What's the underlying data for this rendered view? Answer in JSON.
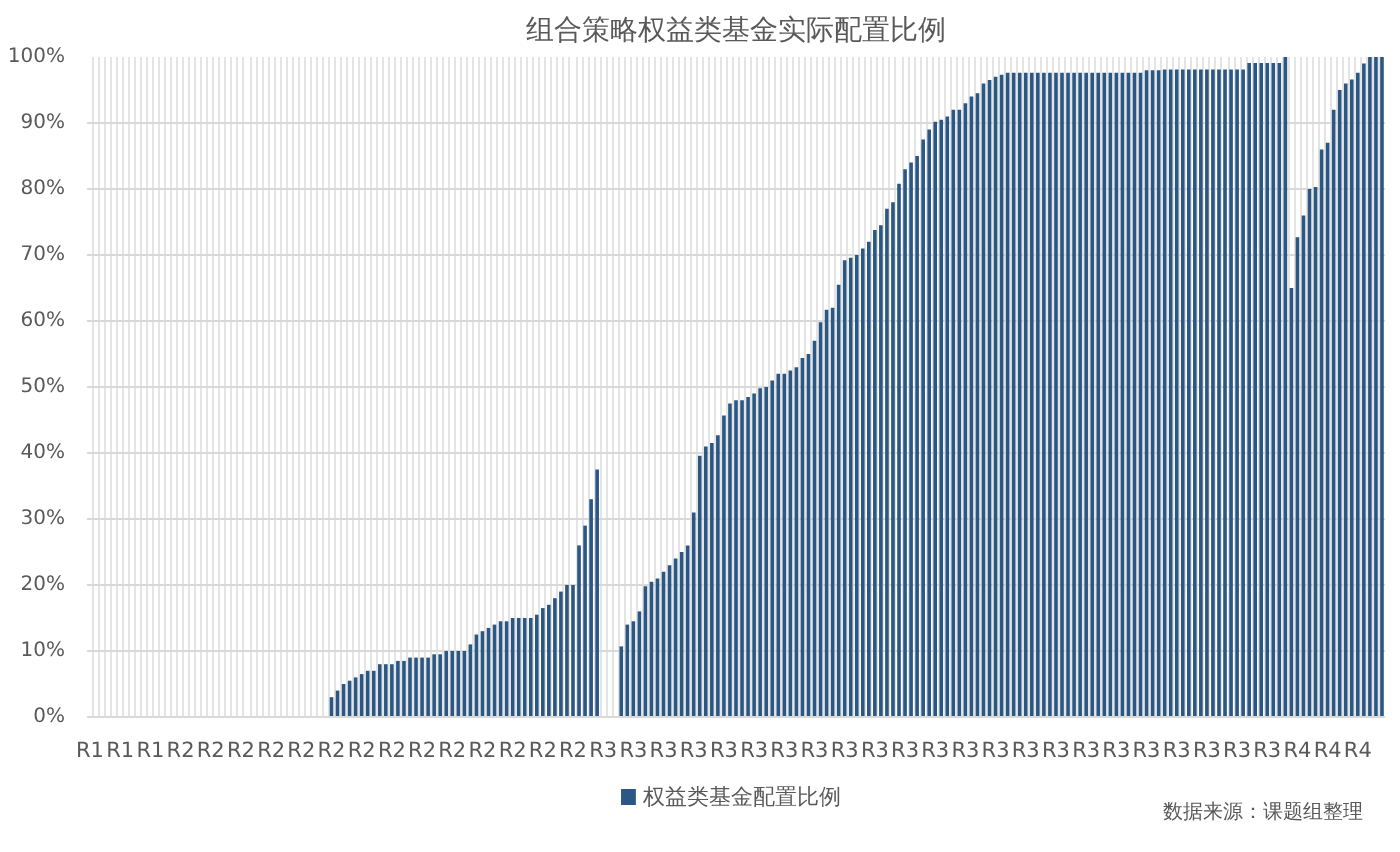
{
  "chart_data": {
    "type": "bar",
    "title": "组合策略权益类基金实际配置比例",
    "categories": [
      "R1",
      null,
      null,
      null,
      null,
      "R1",
      null,
      null,
      null,
      null,
      "R1",
      null,
      null,
      null,
      null,
      "R2",
      null,
      null,
      null,
      null,
      "R2",
      null,
      null,
      null,
      null,
      "R2",
      null,
      null,
      null,
      null,
      "R2",
      null,
      null,
      null,
      null,
      "R2",
      null,
      null,
      null,
      null,
      "R2",
      null,
      null,
      null,
      null,
      "R2",
      null,
      null,
      null,
      null,
      "R2",
      null,
      null,
      null,
      null,
      "R2",
      null,
      null,
      null,
      null,
      "R2",
      null,
      null,
      null,
      null,
      "R2",
      null,
      null,
      null,
      null,
      "R2",
      null,
      null,
      null,
      null,
      "R2",
      null,
      null,
      null,
      null,
      "R2",
      null,
      null,
      null,
      null,
      "R3",
      null,
      null,
      null,
      null,
      "R3",
      null,
      null,
      null,
      null,
      "R3",
      null,
      null,
      null,
      null,
      "R3",
      null,
      null,
      null,
      null,
      "R3",
      null,
      null,
      null,
      null,
      "R3",
      null,
      null,
      null,
      null,
      "R3",
      null,
      null,
      null,
      null,
      "R3",
      null,
      null,
      null,
      null,
      "R3",
      null,
      null,
      null,
      null,
      "R3",
      null,
      null,
      null,
      null,
      "R3",
      null,
      null,
      null,
      null,
      "R3",
      null,
      null,
      null,
      null,
      "R3",
      null,
      null,
      null,
      null,
      "R3",
      null,
      null,
      null,
      null,
      "R3",
      null,
      null,
      null,
      null,
      "R3",
      null,
      null,
      null,
      null,
      "R3",
      null,
      null,
      null,
      null,
      "R3",
      null,
      null,
      null,
      null,
      "R3",
      null,
      null,
      null,
      null,
      "R3",
      null,
      null,
      null,
      null,
      "R3",
      null,
      null,
      null,
      null,
      "R3",
      null,
      null,
      null,
      null,
      "R3",
      null,
      null,
      null,
      null,
      "R4",
      null,
      null,
      null,
      null,
      "R4",
      null,
      null,
      null,
      null,
      "R4",
      null,
      null,
      null,
      null
    ],
    "series": [
      {
        "name": "权益类基金配置比例",
        "color": "#2a5783",
        "values": [
          0,
          0,
          0,
          0,
          0,
          0,
          0,
          0,
          0,
          0,
          0,
          0,
          0,
          0,
          0,
          0,
          0,
          0,
          0,
          0,
          0,
          0,
          0,
          0,
          0,
          0,
          0,
          0,
          0,
          0,
          0,
          0,
          0,
          0,
          0,
          0,
          0,
          0,
          0,
          0,
          3,
          4,
          5,
          5.5,
          6,
          6.5,
          7,
          7,
          8,
          8,
          8,
          8.5,
          8.5,
          9,
          9,
          9,
          9,
          9.5,
          9.5,
          10,
          10,
          10,
          10,
          11,
          12.5,
          13,
          13.5,
          14,
          14.5,
          14.5,
          15,
          15,
          15,
          15,
          15.5,
          16.5,
          17,
          18,
          19,
          20,
          20,
          26,
          29,
          33,
          37.5,
          0,
          0,
          0,
          10.7,
          14,
          14.5,
          16,
          19.8,
          20.5,
          21,
          22,
          23,
          24,
          25,
          26,
          31,
          39.6,
          41,
          41.5,
          42.7,
          45.7,
          47.5,
          48,
          48,
          48.5,
          49,
          49.8,
          50,
          51,
          52,
          52,
          52.5,
          53,
          54.4,
          55,
          57,
          59.8,
          61.7,
          62,
          65.5,
          69.2,
          69.6,
          70,
          71,
          72,
          73.8,
          74.5,
          77,
          78,
          80.8,
          83,
          84,
          85,
          87.5,
          89,
          90.2,
          90.5,
          91,
          92,
          92,
          93,
          94,
          94.5,
          96,
          96.5,
          97,
          97.3,
          97.6,
          97.6,
          97.6,
          97.6,
          97.6,
          97.6,
          97.6,
          97.6,
          97.6,
          97.6,
          97.6,
          97.6,
          97.6,
          97.6,
          97.6,
          97.6,
          97.6,
          97.6,
          97.6,
          97.6,
          97.6,
          97.6,
          97.6,
          98,
          98,
          98,
          98.1,
          98.1,
          98.1,
          98.1,
          98.1,
          98.1,
          98.1,
          98.1,
          98.1,
          98.1,
          98.1,
          98.1,
          98.1,
          98.1,
          99.1,
          99.1,
          99.1,
          99.1,
          99.1,
          99.1,
          100,
          65,
          72.7,
          76,
          80,
          80.3,
          86,
          87,
          92,
          95,
          96,
          96.6,
          97.6,
          99,
          100,
          100,
          100
        ]
      }
    ],
    "ylim": [
      0,
      100
    ],
    "yticks": [
      {
        "value": 0,
        "label": "0%"
      },
      {
        "value": 10,
        "label": "10%"
      },
      {
        "value": 20,
        "label": "20%"
      },
      {
        "value": 30,
        "label": "30%"
      },
      {
        "value": 40,
        "label": "40%"
      },
      {
        "value": 50,
        "label": "50%"
      },
      {
        "value": 60,
        "label": "60%"
      },
      {
        "value": 70,
        "label": "70%"
      },
      {
        "value": 80,
        "label": "80%"
      },
      {
        "value": 90,
        "label": "90%"
      },
      {
        "value": 100,
        "label": "100%"
      }
    ],
    "grid": true,
    "legend": "bottom",
    "annotations": [
      "数据来源：课题组整理"
    ]
  }
}
